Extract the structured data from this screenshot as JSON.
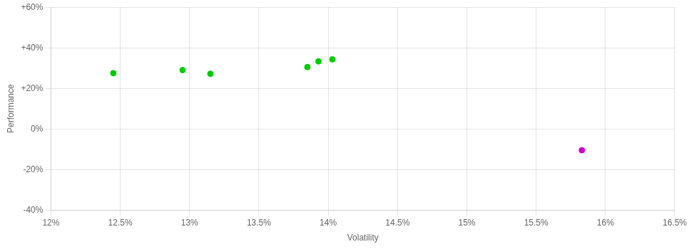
{
  "chart_data": {
    "type": "scatter",
    "xlabel": "Volatility",
    "ylabel": "Performance",
    "xlim": [
      0.12,
      0.165
    ],
    "ylim": [
      -0.4,
      0.6
    ],
    "xticks": [
      {
        "value": 0.12,
        "label": "12%"
      },
      {
        "value": 0.125,
        "label": "12.5%"
      },
      {
        "value": 0.13,
        "label": "13%"
      },
      {
        "value": 0.135,
        "label": "13.5%"
      },
      {
        "value": 0.14,
        "label": "14%"
      },
      {
        "value": 0.145,
        "label": "14.5%"
      },
      {
        "value": 0.15,
        "label": "15%"
      },
      {
        "value": 0.155,
        "label": "15.5%"
      },
      {
        "value": 0.16,
        "label": "16%"
      },
      {
        "value": 0.165,
        "label": "16.5%"
      }
    ],
    "yticks": [
      {
        "value": -0.4,
        "label": "-40%"
      },
      {
        "value": -0.2,
        "label": "-20%"
      },
      {
        "value": 0.0,
        "label": "0%"
      },
      {
        "value": 0.2,
        "label": "+20%"
      },
      {
        "value": 0.4,
        "label": "+40%"
      },
      {
        "value": 0.6,
        "label": "+60%"
      }
    ],
    "grid": true,
    "series": [
      {
        "color": "#00cc00",
        "marker": "circle",
        "x": [
          0.1245,
          0.1295,
          0.1315,
          0.1385,
          0.1393,
          0.1403
        ],
        "values": [
          0.275,
          0.29,
          0.272,
          0.305,
          0.333,
          0.343
        ]
      },
      {
        "color": "#cc00cc",
        "marker": "circle",
        "x": [
          0.1583
        ],
        "values": [
          -0.105
        ]
      }
    ]
  }
}
